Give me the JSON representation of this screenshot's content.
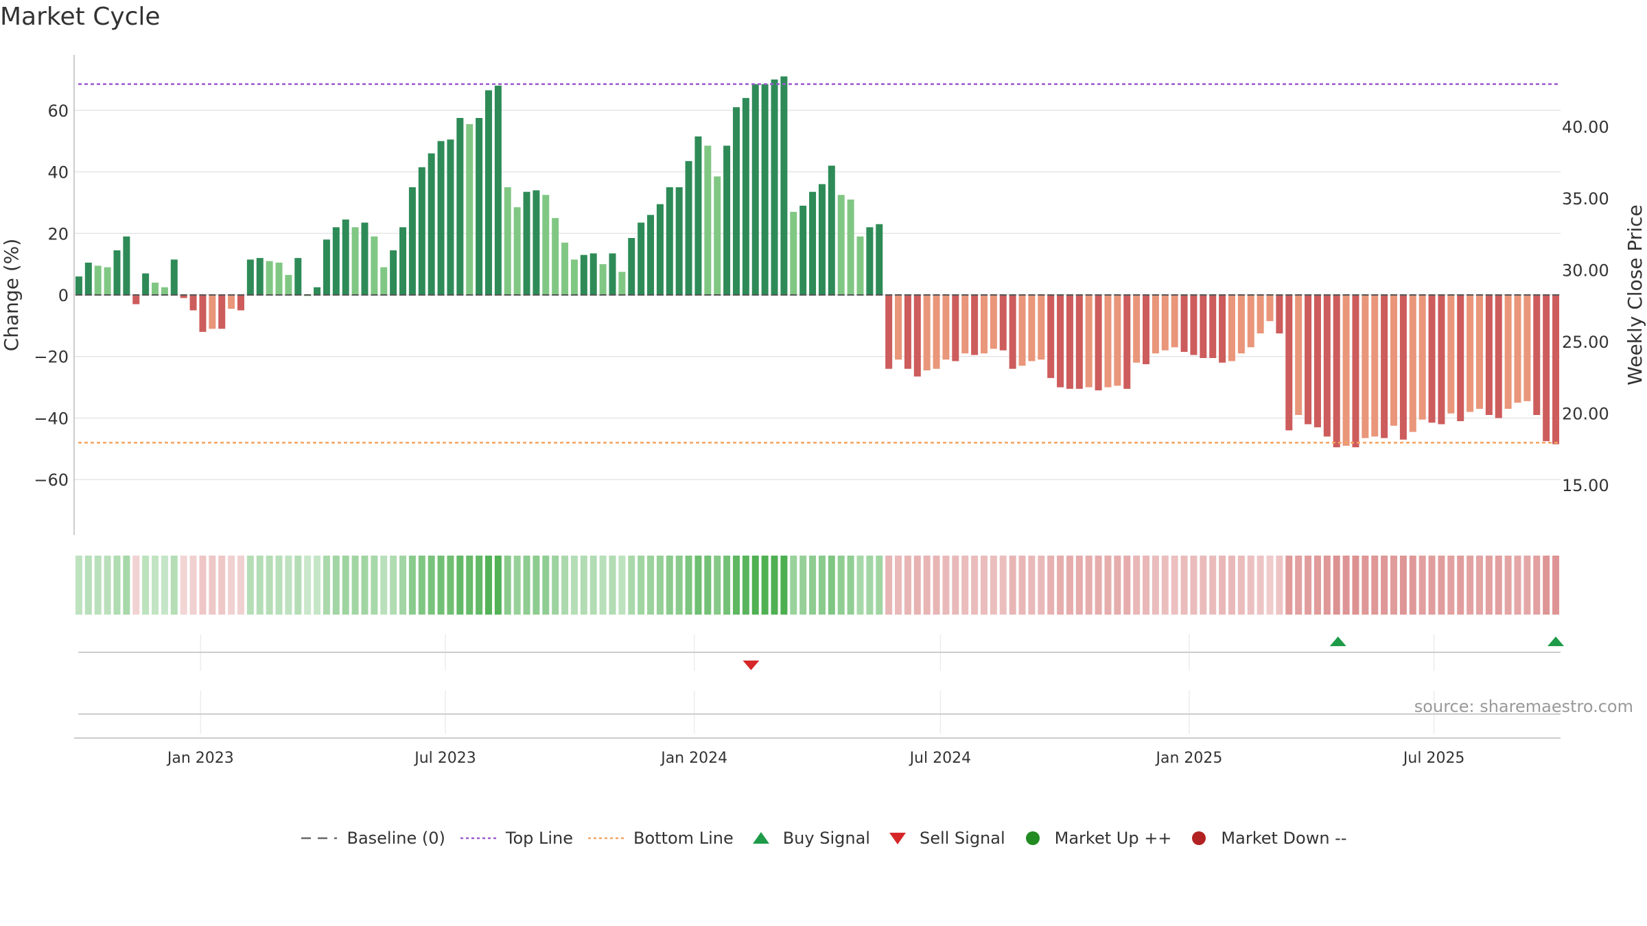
{
  "title": "Market Cycle",
  "source": "source: sharemaestro.com",
  "chart_data": {
    "type": "bar",
    "ylabel": "Change (%)",
    "y2label": "Weekly Close Price",
    "ylim": [
      -78,
      78
    ],
    "y2lim": [
      11.5,
      45.0
    ],
    "yticks": [
      60,
      40,
      20,
      0,
      -20,
      -40,
      -60
    ],
    "yticklabels": [
      "60",
      "40",
      "20",
      "0",
      "−20",
      "−40",
      "−60"
    ],
    "y2ticks": [
      40,
      35,
      30,
      25,
      20,
      15
    ],
    "y2ticklabels": [
      "40.00",
      "35.00",
      "30.00",
      "25.00",
      "20.00",
      "15.00"
    ],
    "x_start": "2022-10-03",
    "x_end": "2025-09-29",
    "xticks": [
      "2023-01-01",
      "2023-07-01",
      "2024-01-01",
      "2024-07-01",
      "2025-01-01",
      "2025-07-01"
    ],
    "xticklabels": [
      "Jan 2023",
      "Jul 2023",
      "Jan 2024",
      "Jul 2024",
      "Jan 2025",
      "Jul 2025"
    ],
    "top_line": 68.5,
    "bottom_line": -48,
    "grid": true,
    "series": [
      {
        "name": "Change (%)",
        "values": [
          6,
          10.5,
          9.5,
          9,
          14.5,
          19,
          -3,
          7,
          4,
          2.5,
          11.5,
          -1,
          -5,
          -12,
          -11,
          -11,
          -4.5,
          -5,
          11.5,
          12,
          11,
          10.5,
          6.5,
          12,
          0,
          2.5,
          18,
          22,
          24.5,
          22,
          23.5,
          19,
          9,
          14.5,
          22,
          35,
          41.5,
          46,
          50,
          50.5,
          57.5,
          55.5,
          57.5,
          66.5,
          68,
          35,
          28.5,
          33.5,
          34,
          32.5,
          25,
          17,
          11.5,
          13,
          13.5,
          10,
          13.5,
          7.5,
          18.5,
          23.5,
          26,
          29.5,
          35,
          35,
          43.5,
          51.5,
          48.5,
          38.5,
          48.5,
          61,
          64,
          68.5,
          68.5,
          70,
          71,
          27,
          29,
          33.5,
          36,
          42,
          32.5,
          31,
          19,
          22,
          23,
          -24,
          -21,
          -24,
          -26.5,
          -24.5,
          -24,
          -21,
          -21.5,
          -19,
          -19.5,
          -19,
          -17.5,
          -18,
          -24,
          -23,
          -21.5,
          -21,
          -27,
          -30,
          -30.5,
          -30.5,
          -30,
          -31,
          -30,
          -29.5,
          -30.5,
          -22,
          -22.5,
          -19,
          -18,
          -17,
          -18.5,
          -19.5,
          -20.5,
          -20.5,
          -22,
          -21.5,
          -19,
          -17,
          -12.5,
          -8.5,
          -12.5,
          -44,
          -39,
          -42,
          -43,
          -46,
          -49.5,
          -49,
          -49.5,
          -46.5,
          -46,
          -46.5,
          -42.5,
          -47,
          -44.5,
          -40.5,
          -41.5,
          -42,
          -38.5,
          -41,
          -38,
          -37,
          -39,
          -40,
          -37,
          -35,
          -34.5,
          -39,
          -47.5,
          -48.5
        ]
      }
    ],
    "signals": [
      {
        "type": "Sell Signal",
        "date": "2024-02-12"
      },
      {
        "type": "Buy Signal",
        "date": "2025-04-21"
      },
      {
        "type": "Buy Signal",
        "date": "2025-09-29"
      }
    ],
    "legend": [
      "Baseline (0)",
      "Top Line",
      "Bottom Line",
      "Buy Signal",
      "Sell Signal",
      "Market Up ++",
      "Market Down --"
    ],
    "legend_position": "bottom-center",
    "colors": {
      "up_strong": "#2e8b57",
      "up_weak": "#81c784",
      "down_strong": "#cd5c5c",
      "down_weak": "#e9967a",
      "top_line": "#9b59d0",
      "bottom_line": "#f4a460",
      "buy": "#1e9b48",
      "sell": "#d62728",
      "market_up": "#228b22",
      "market_down": "#b22222"
    }
  }
}
